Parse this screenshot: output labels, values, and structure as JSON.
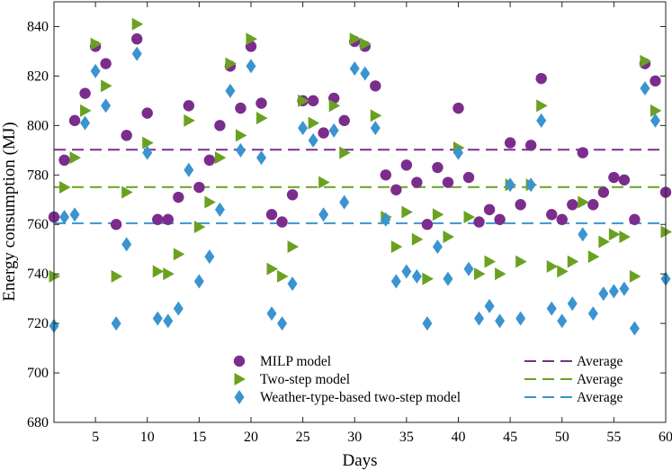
{
  "chart_data": {
    "type": "scatter",
    "title": "",
    "xlabel": "Days",
    "ylabel": "Energy consumption (MJ)",
    "xlim": [
      1,
      60
    ],
    "ylim": [
      680,
      850
    ],
    "x_ticks": [
      5,
      10,
      15,
      20,
      25,
      30,
      35,
      40,
      45,
      50,
      55,
      60
    ],
    "y_ticks": [
      680,
      700,
      720,
      740,
      760,
      780,
      800,
      820,
      840
    ],
    "grid": false,
    "legend_position": "bottom",
    "x": [
      1,
      2,
      3,
      4,
      5,
      6,
      7,
      8,
      9,
      10,
      11,
      12,
      13,
      14,
      15,
      16,
      17,
      18,
      19,
      20,
      21,
      22,
      23,
      24,
      25,
      26,
      27,
      28,
      29,
      30,
      31,
      32,
      33,
      34,
      35,
      36,
      37,
      38,
      39,
      40,
      41,
      42,
      43,
      44,
      45,
      46,
      47,
      48,
      49,
      50,
      51,
      52,
      53,
      54,
      55,
      56,
      57,
      58,
      59,
      60
    ],
    "series": [
      {
        "name": "MILP model",
        "marker": "circle",
        "color": "#7b2d8e",
        "values": [
          763,
          786,
          802,
          813,
          832,
          825,
          760,
          796,
          835,
          805,
          762,
          762,
          771,
          808,
          775,
          786,
          800,
          824,
          807,
          832,
          809,
          764,
          761,
          772,
          810,
          810,
          797,
          811,
          802,
          834,
          832,
          816,
          780,
          774,
          784,
          777,
          760,
          783,
          777,
          807,
          779,
          761,
          766,
          762,
          793,
          768,
          792,
          819,
          764,
          762,
          768,
          789,
          768,
          773,
          779,
          778,
          762,
          825,
          818,
          773
        ]
      },
      {
        "name": "Two-step model",
        "marker": "triangle-right",
        "color": "#6aa121",
        "values": [
          739,
          775,
          787,
          806,
          833,
          816,
          739,
          773,
          841,
          793,
          741,
          740,
          748,
          802,
          759,
          769,
          787,
          825,
          796,
          835,
          803,
          742,
          739,
          751,
          810,
          801,
          777,
          808,
          789,
          835,
          833,
          804,
          763,
          751,
          765,
          754,
          738,
          764,
          755,
          791,
          763,
          740,
          745,
          740,
          776,
          745,
          776,
          808,
          743,
          741,
          745,
          769,
          747,
          753,
          756,
          755,
          739,
          826,
          806,
          757
        ]
      },
      {
        "name": "Weather-type-based two-step model",
        "marker": "diamond",
        "color": "#3a94d0",
        "values": [
          719,
          763,
          764,
          801,
          822,
          808,
          720,
          752,
          829,
          789,
          722,
          721,
          726,
          782,
          737,
          747,
          766,
          814,
          790,
          824,
          787,
          724,
          720,
          736,
          799,
          794,
          764,
          798,
          769,
          823,
          821,
          799,
          762,
          737,
          741,
          739,
          720,
          751,
          738,
          789,
          742,
          722,
          727,
          721,
          776,
          722,
          776,
          802,
          726,
          721,
          728,
          756,
          724,
          732,
          733,
          734,
          718,
          815,
          802,
          738
        ]
      }
    ],
    "reference_lines": [
      {
        "name": "Average",
        "value": 790.2,
        "color": "#7b2d8e",
        "style": "dashed"
      },
      {
        "name": "Average",
        "value": 775.1,
        "color": "#6aa121",
        "style": "dashed"
      },
      {
        "name": "Average",
        "value": 760.5,
        "color": "#3a94d0",
        "style": "dashed"
      }
    ]
  }
}
